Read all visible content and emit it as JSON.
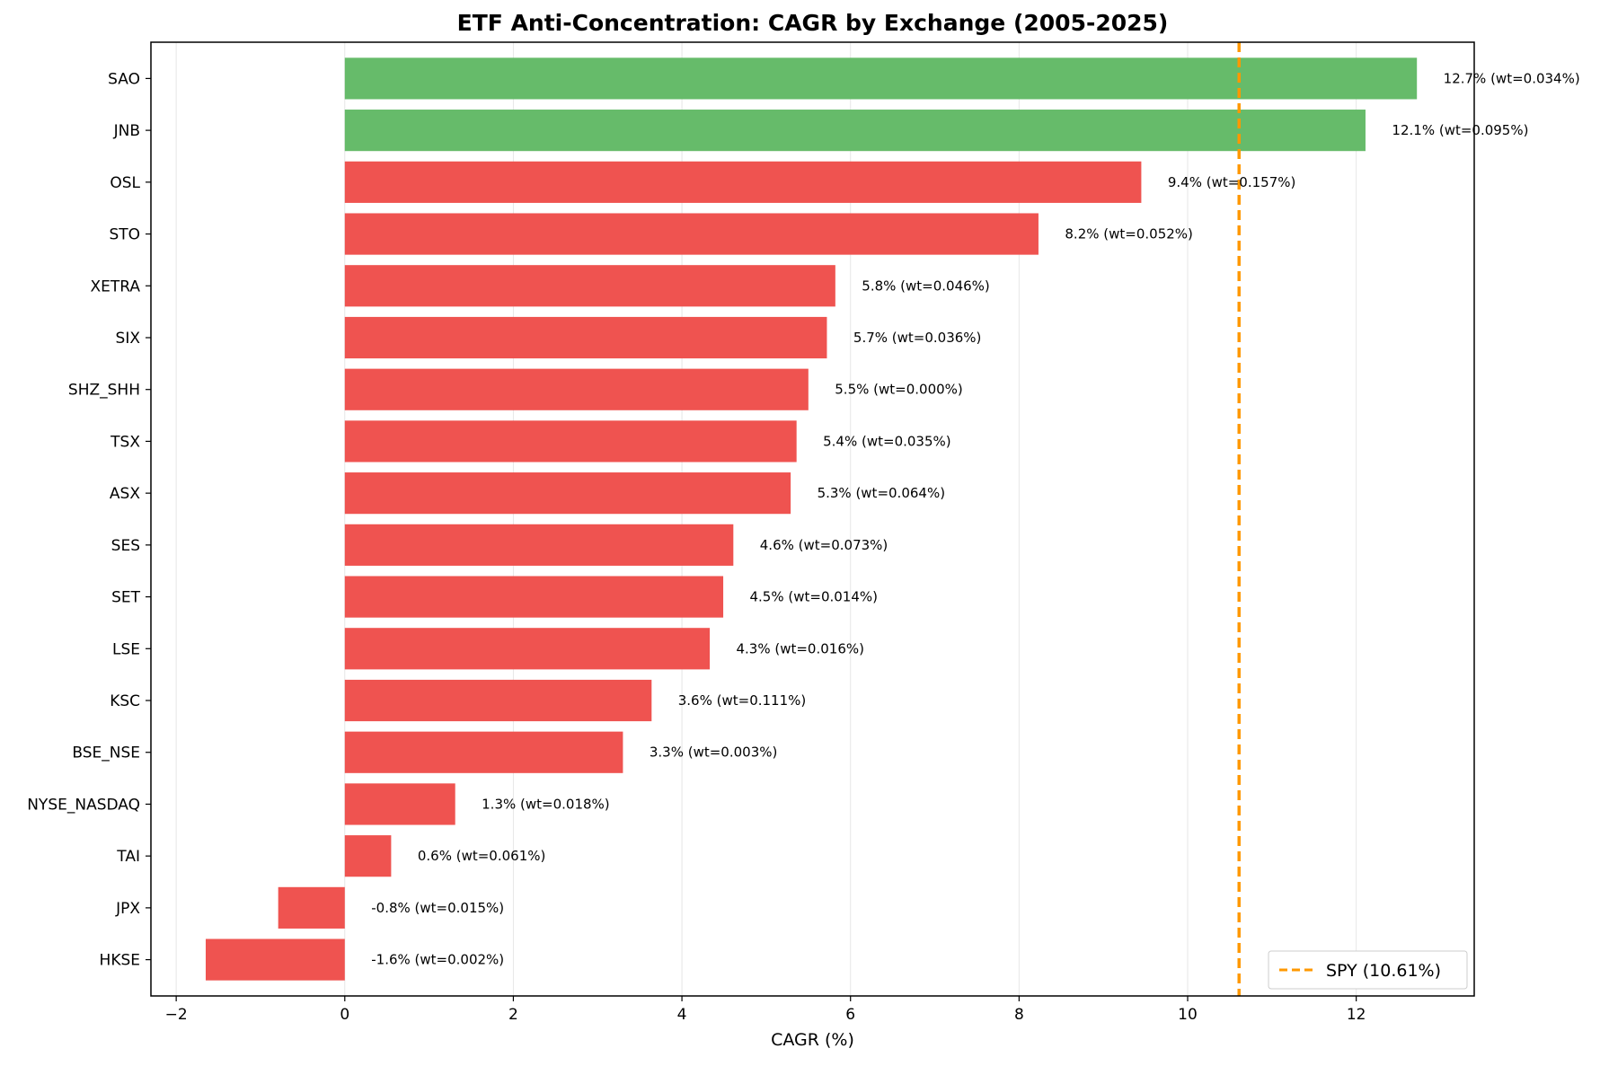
{
  "chart_data": {
    "type": "bar",
    "orientation": "horizontal",
    "title": "ETF Anti-Concentration: CAGR by Exchange (2005-2025)",
    "xlabel": "CAGR (%)",
    "ylabel": "",
    "xlim": [
      -2.3,
      13.4
    ],
    "xticks": [
      -2,
      0,
      2,
      4,
      6,
      8,
      10,
      12
    ],
    "xtick_labels": [
      "−2",
      "0",
      "2",
      "4",
      "6",
      "8",
      "10",
      "12"
    ],
    "grid": "vertical",
    "categories": [
      "SAO",
      "JNB",
      "OSL",
      "STO",
      "XETRA",
      "SIX",
      "SHZ_SHH",
      "TSX",
      "ASX",
      "SES",
      "SET",
      "LSE",
      "KSC",
      "BSE_NSE",
      "NYSE_NASDAQ",
      "TAI",
      "JPX",
      "HKSE"
    ],
    "values": [
      12.72,
      12.11,
      9.45,
      8.23,
      5.82,
      5.72,
      5.5,
      5.36,
      5.29,
      4.61,
      4.49,
      4.33,
      3.64,
      3.3,
      1.31,
      0.55,
      -0.79,
      -1.65
    ],
    "data_labels": [
      "12.7% (wt=0.034%)",
      "12.1% (wt=0.095%)",
      "9.4% (wt=0.157%)",
      "8.2% (wt=0.052%)",
      "5.8% (wt=0.046%)",
      "5.7% (wt=0.036%)",
      "5.5% (wt=0.000%)",
      "5.4% (wt=0.035%)",
      "5.3% (wt=0.064%)",
      "4.6% (wt=0.073%)",
      "4.5% (wt=0.014%)",
      "4.3% (wt=0.016%)",
      "3.6% (wt=0.111%)",
      "3.3% (wt=0.003%)",
      "1.3% (wt=0.018%)",
      "0.6% (wt=0.061%)",
      "-0.8% (wt=0.015%)",
      "-1.6% (wt=0.002%)"
    ],
    "colors": {
      "above_benchmark": "#66bb6a",
      "below_benchmark": "#ef5350",
      "benchmark_line": "#ff9800",
      "grid": "#e6e6e6"
    },
    "reference_line": {
      "name": "SPY (10.61%)",
      "value": 10.61,
      "style": "dashed"
    },
    "legend": {
      "position": "lower-right",
      "entries": [
        "SPY (10.61%)"
      ]
    }
  }
}
